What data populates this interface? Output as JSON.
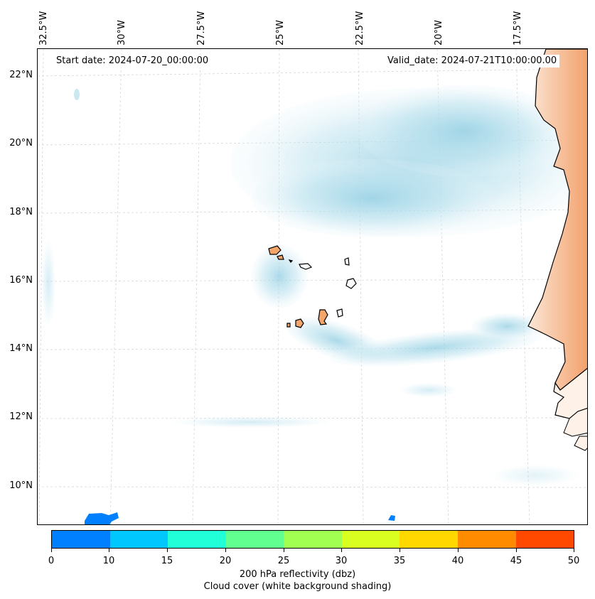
{
  "map": {
    "start_date": "Start date: 2024-07-20_00:00:00",
    "valid_date": "Valid_date: 2024-07-21T10:00:00.00",
    "lon_labels": [
      "32.5°W",
      "30°W",
      "27.5°W",
      "25°W",
      "22.5°W",
      "20°W",
      "17.5°W"
    ],
    "lat_labels": [
      "22°N",
      "20°N",
      "18°N",
      "16°N",
      "14°N",
      "12°N",
      "10°N"
    ],
    "region": "Cape Verde Islands / West African coast",
    "colors": {
      "land": "#f4a66a",
      "cloud": "#a8d8e8",
      "grid": "#cccccc"
    }
  },
  "colorbar": {
    "ticks": [
      "0",
      "10",
      "15",
      "20",
      "25",
      "30",
      "35",
      "40",
      "45",
      "50"
    ],
    "colors": [
      "#0080ff",
      "#00c8ff",
      "#20ffd8",
      "#60ff90",
      "#a0ff50",
      "#d8ff20",
      "#ffd800",
      "#ff8c00",
      "#ff4800"
    ],
    "label_line1": "200 hPa reflectivity (dbz)",
    "label_line2": "Cloud cover (white background shading)"
  }
}
